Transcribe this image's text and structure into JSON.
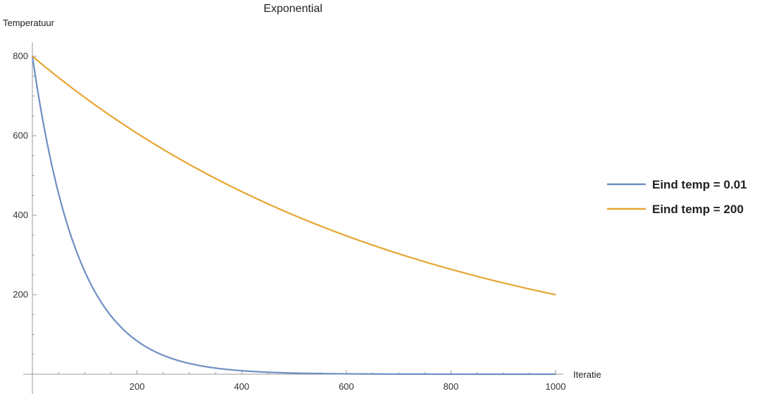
{
  "chart_data": {
    "type": "line",
    "title": "Exponential",
    "xlabel": "Iteratie",
    "ylabel": "Temperatuur",
    "xlim": [
      0,
      1000
    ],
    "ylim": [
      0,
      800
    ],
    "x_ticks": [
      200,
      400,
      600,
      800,
      1000
    ],
    "y_ticks": [
      200,
      400,
      600,
      800
    ],
    "x_minor_step": 50,
    "y_minor_step": 50,
    "legend_position": "right",
    "grid": false,
    "series": [
      {
        "name": "Eind temp = 0.01",
        "color": "#6f8fc4",
        "start": 800,
        "end": 0.01,
        "x": [
          0,
          50,
          100,
          150,
          200,
          250,
          300,
          350,
          400,
          450,
          500,
          600,
          700,
          800,
          900,
          1000
        ],
        "y": [
          800,
          452.1,
          255.4,
          144.3,
          81.5,
          46.1,
          26.0,
          14.7,
          8.3,
          4.7,
          2.7,
          0.8,
          0.3,
          0.08,
          0.03,
          0.01
        ]
      },
      {
        "name": "Eind temp = 200",
        "color": "#e6a532",
        "start": 800,
        "end": 200,
        "x": [
          0,
          100,
          200,
          300,
          400,
          500,
          600,
          700,
          800,
          900,
          1000
        ],
        "y": [
          800,
          696.4,
          606.3,
          527.8,
          459.5,
          400.0,
          348.2,
          303.1,
          263.9,
          229.7,
          200.0
        ]
      }
    ]
  }
}
